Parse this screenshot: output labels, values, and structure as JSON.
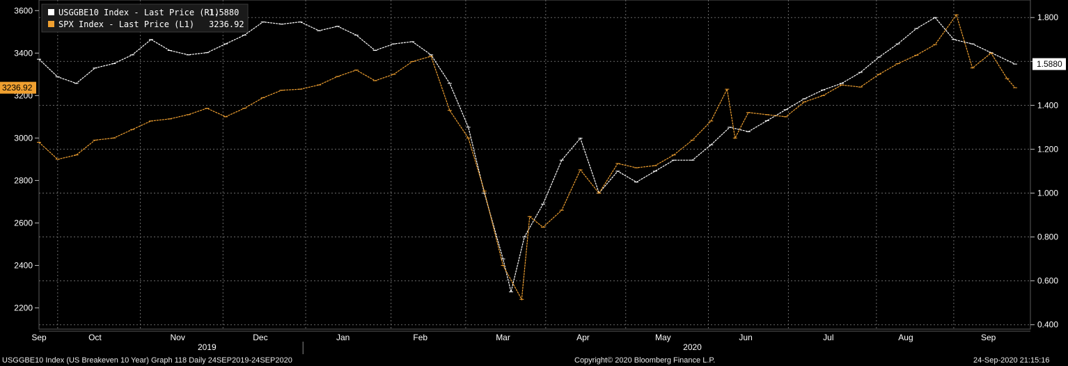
{
  "colors": {
    "background": "#000000",
    "plot_border": "#5a5a5a",
    "grid": "#6b6b6b",
    "series_white": "#ffffff",
    "series_orange": "#f0a030",
    "last_price_badge_orange": "#f0a030"
  },
  "legend": {
    "items": [
      {
        "label": "USGGBE10 Index - Last Price (R1)",
        "value": "1.5880",
        "color": "#ffffff"
      },
      {
        "label": "SPX Index - Last Price (L1)",
        "value": "3236.92",
        "color": "#f0a030"
      }
    ]
  },
  "badges": {
    "left_last_price": "3236.92",
    "right_last_price": "1.5880"
  },
  "footer": {
    "left": "USGGBE10 Index (US Breakeven 10 Year) Graph 118  Daily 24SEP2019-24SEP2020",
    "center": "Copyright© 2020 Bloomberg Finance L.P.",
    "right": "24-Sep-2020 21:15:16"
  },
  "chart_data": {
    "type": "line",
    "grid": true,
    "legend_position": "top-left",
    "x_range": [
      "2019-09-24",
      "2020-09-24"
    ],
    "x_tick_labels": [
      "Sep",
      "Oct",
      "Nov",
      "Dec",
      "Jan",
      "Feb",
      "Mar",
      "Apr",
      "May",
      "Jun",
      "Jul",
      "Aug",
      "Sep"
    ],
    "x_year_labels": [
      "2019",
      "2020"
    ],
    "y_left": {
      "range": [
        2100,
        3650
      ],
      "ticks": [
        2200,
        2400,
        2600,
        2800,
        3000,
        3200,
        3400,
        3600
      ]
    },
    "y_right": {
      "range": [
        0.38,
        1.88
      ],
      "ticks": [
        "0.400",
        "0.600",
        "0.800",
        "1.000",
        "1.200",
        "1.400",
        "1.600",
        "1.800"
      ]
    },
    "series": [
      {
        "name": "USGGBE10 Index - Last Price",
        "axis": "right",
        "points": [
          [
            "2019-09-24",
            1.61
          ],
          [
            "2019-10-01",
            1.53
          ],
          [
            "2019-10-08",
            1.5
          ],
          [
            "2019-10-15",
            1.57
          ],
          [
            "2019-10-22",
            1.59
          ],
          [
            "2019-10-29",
            1.63
          ],
          [
            "2019-11-05",
            1.7
          ],
          [
            "2019-11-12",
            1.65
          ],
          [
            "2019-11-19",
            1.63
          ],
          [
            "2019-11-26",
            1.64
          ],
          [
            "2019-12-03",
            1.68
          ],
          [
            "2019-12-10",
            1.72
          ],
          [
            "2019-12-17",
            1.78
          ],
          [
            "2019-12-24",
            1.77
          ],
          [
            "2019-12-31",
            1.78
          ],
          [
            "2020-01-07",
            1.74
          ],
          [
            "2020-01-14",
            1.76
          ],
          [
            "2020-01-21",
            1.72
          ],
          [
            "2020-01-28",
            1.65
          ],
          [
            "2020-02-04",
            1.68
          ],
          [
            "2020-02-11",
            1.69
          ],
          [
            "2020-02-18",
            1.63
          ],
          [
            "2020-02-25",
            1.5
          ],
          [
            "2020-03-03",
            1.3
          ],
          [
            "2020-03-09",
            1.0
          ],
          [
            "2020-03-16",
            0.7
          ],
          [
            "2020-03-19",
            0.55
          ],
          [
            "2020-03-24",
            0.8
          ],
          [
            "2020-03-31",
            0.95
          ],
          [
            "2020-04-07",
            1.15
          ],
          [
            "2020-04-14",
            1.25
          ],
          [
            "2020-04-21",
            1.0
          ],
          [
            "2020-04-28",
            1.1
          ],
          [
            "2020-05-05",
            1.05
          ],
          [
            "2020-05-12",
            1.1
          ],
          [
            "2020-05-19",
            1.15
          ],
          [
            "2020-05-26",
            1.15
          ],
          [
            "2020-06-02",
            1.22
          ],
          [
            "2020-06-09",
            1.3
          ],
          [
            "2020-06-16",
            1.28
          ],
          [
            "2020-06-23",
            1.33
          ],
          [
            "2020-06-30",
            1.38
          ],
          [
            "2020-07-07",
            1.43
          ],
          [
            "2020-07-14",
            1.47
          ],
          [
            "2020-07-21",
            1.5
          ],
          [
            "2020-07-28",
            1.55
          ],
          [
            "2020-08-04",
            1.62
          ],
          [
            "2020-08-11",
            1.68
          ],
          [
            "2020-08-18",
            1.75
          ],
          [
            "2020-08-25",
            1.8
          ],
          [
            "2020-09-01",
            1.7
          ],
          [
            "2020-09-08",
            1.68
          ],
          [
            "2020-09-15",
            1.64
          ],
          [
            "2020-09-24",
            1.588
          ]
        ]
      },
      {
        "name": "SPX Index - Last Price",
        "axis": "left",
        "points": [
          [
            "2019-09-24",
            2980
          ],
          [
            "2019-10-01",
            2900
          ],
          [
            "2019-10-08",
            2920
          ],
          [
            "2019-10-15",
            2990
          ],
          [
            "2019-10-22",
            3000
          ],
          [
            "2019-10-29",
            3040
          ],
          [
            "2019-11-05",
            3080
          ],
          [
            "2019-11-12",
            3090
          ],
          [
            "2019-11-19",
            3110
          ],
          [
            "2019-11-26",
            3140
          ],
          [
            "2019-12-03",
            3100
          ],
          [
            "2019-12-10",
            3140
          ],
          [
            "2019-12-17",
            3190
          ],
          [
            "2019-12-24",
            3225
          ],
          [
            "2019-12-31",
            3230
          ],
          [
            "2020-01-07",
            3250
          ],
          [
            "2020-01-14",
            3290
          ],
          [
            "2020-01-21",
            3320
          ],
          [
            "2020-01-28",
            3270
          ],
          [
            "2020-02-04",
            3300
          ],
          [
            "2020-02-11",
            3360
          ],
          [
            "2020-02-18",
            3385
          ],
          [
            "2020-02-25",
            3130
          ],
          [
            "2020-03-03",
            3000
          ],
          [
            "2020-03-09",
            2750
          ],
          [
            "2020-03-16",
            2400
          ],
          [
            "2020-03-23",
            2240
          ],
          [
            "2020-03-26",
            2630
          ],
          [
            "2020-03-31",
            2580
          ],
          [
            "2020-04-07",
            2660
          ],
          [
            "2020-04-14",
            2850
          ],
          [
            "2020-04-21",
            2740
          ],
          [
            "2020-04-28",
            2880
          ],
          [
            "2020-05-05",
            2860
          ],
          [
            "2020-05-12",
            2870
          ],
          [
            "2020-05-19",
            2920
          ],
          [
            "2020-05-26",
            2990
          ],
          [
            "2020-06-02",
            3080
          ],
          [
            "2020-06-08",
            3230
          ],
          [
            "2020-06-11",
            3000
          ],
          [
            "2020-06-16",
            3120
          ],
          [
            "2020-06-23",
            3110
          ],
          [
            "2020-06-30",
            3100
          ],
          [
            "2020-07-07",
            3170
          ],
          [
            "2020-07-14",
            3200
          ],
          [
            "2020-07-21",
            3250
          ],
          [
            "2020-07-28",
            3240
          ],
          [
            "2020-08-04",
            3300
          ],
          [
            "2020-08-11",
            3350
          ],
          [
            "2020-08-18",
            3390
          ],
          [
            "2020-08-25",
            3440
          ],
          [
            "2020-09-02",
            3580
          ],
          [
            "2020-09-08",
            3330
          ],
          [
            "2020-09-15",
            3400
          ],
          [
            "2020-09-21",
            3280
          ],
          [
            "2020-09-24",
            3236.92
          ]
        ]
      }
    ]
  }
}
